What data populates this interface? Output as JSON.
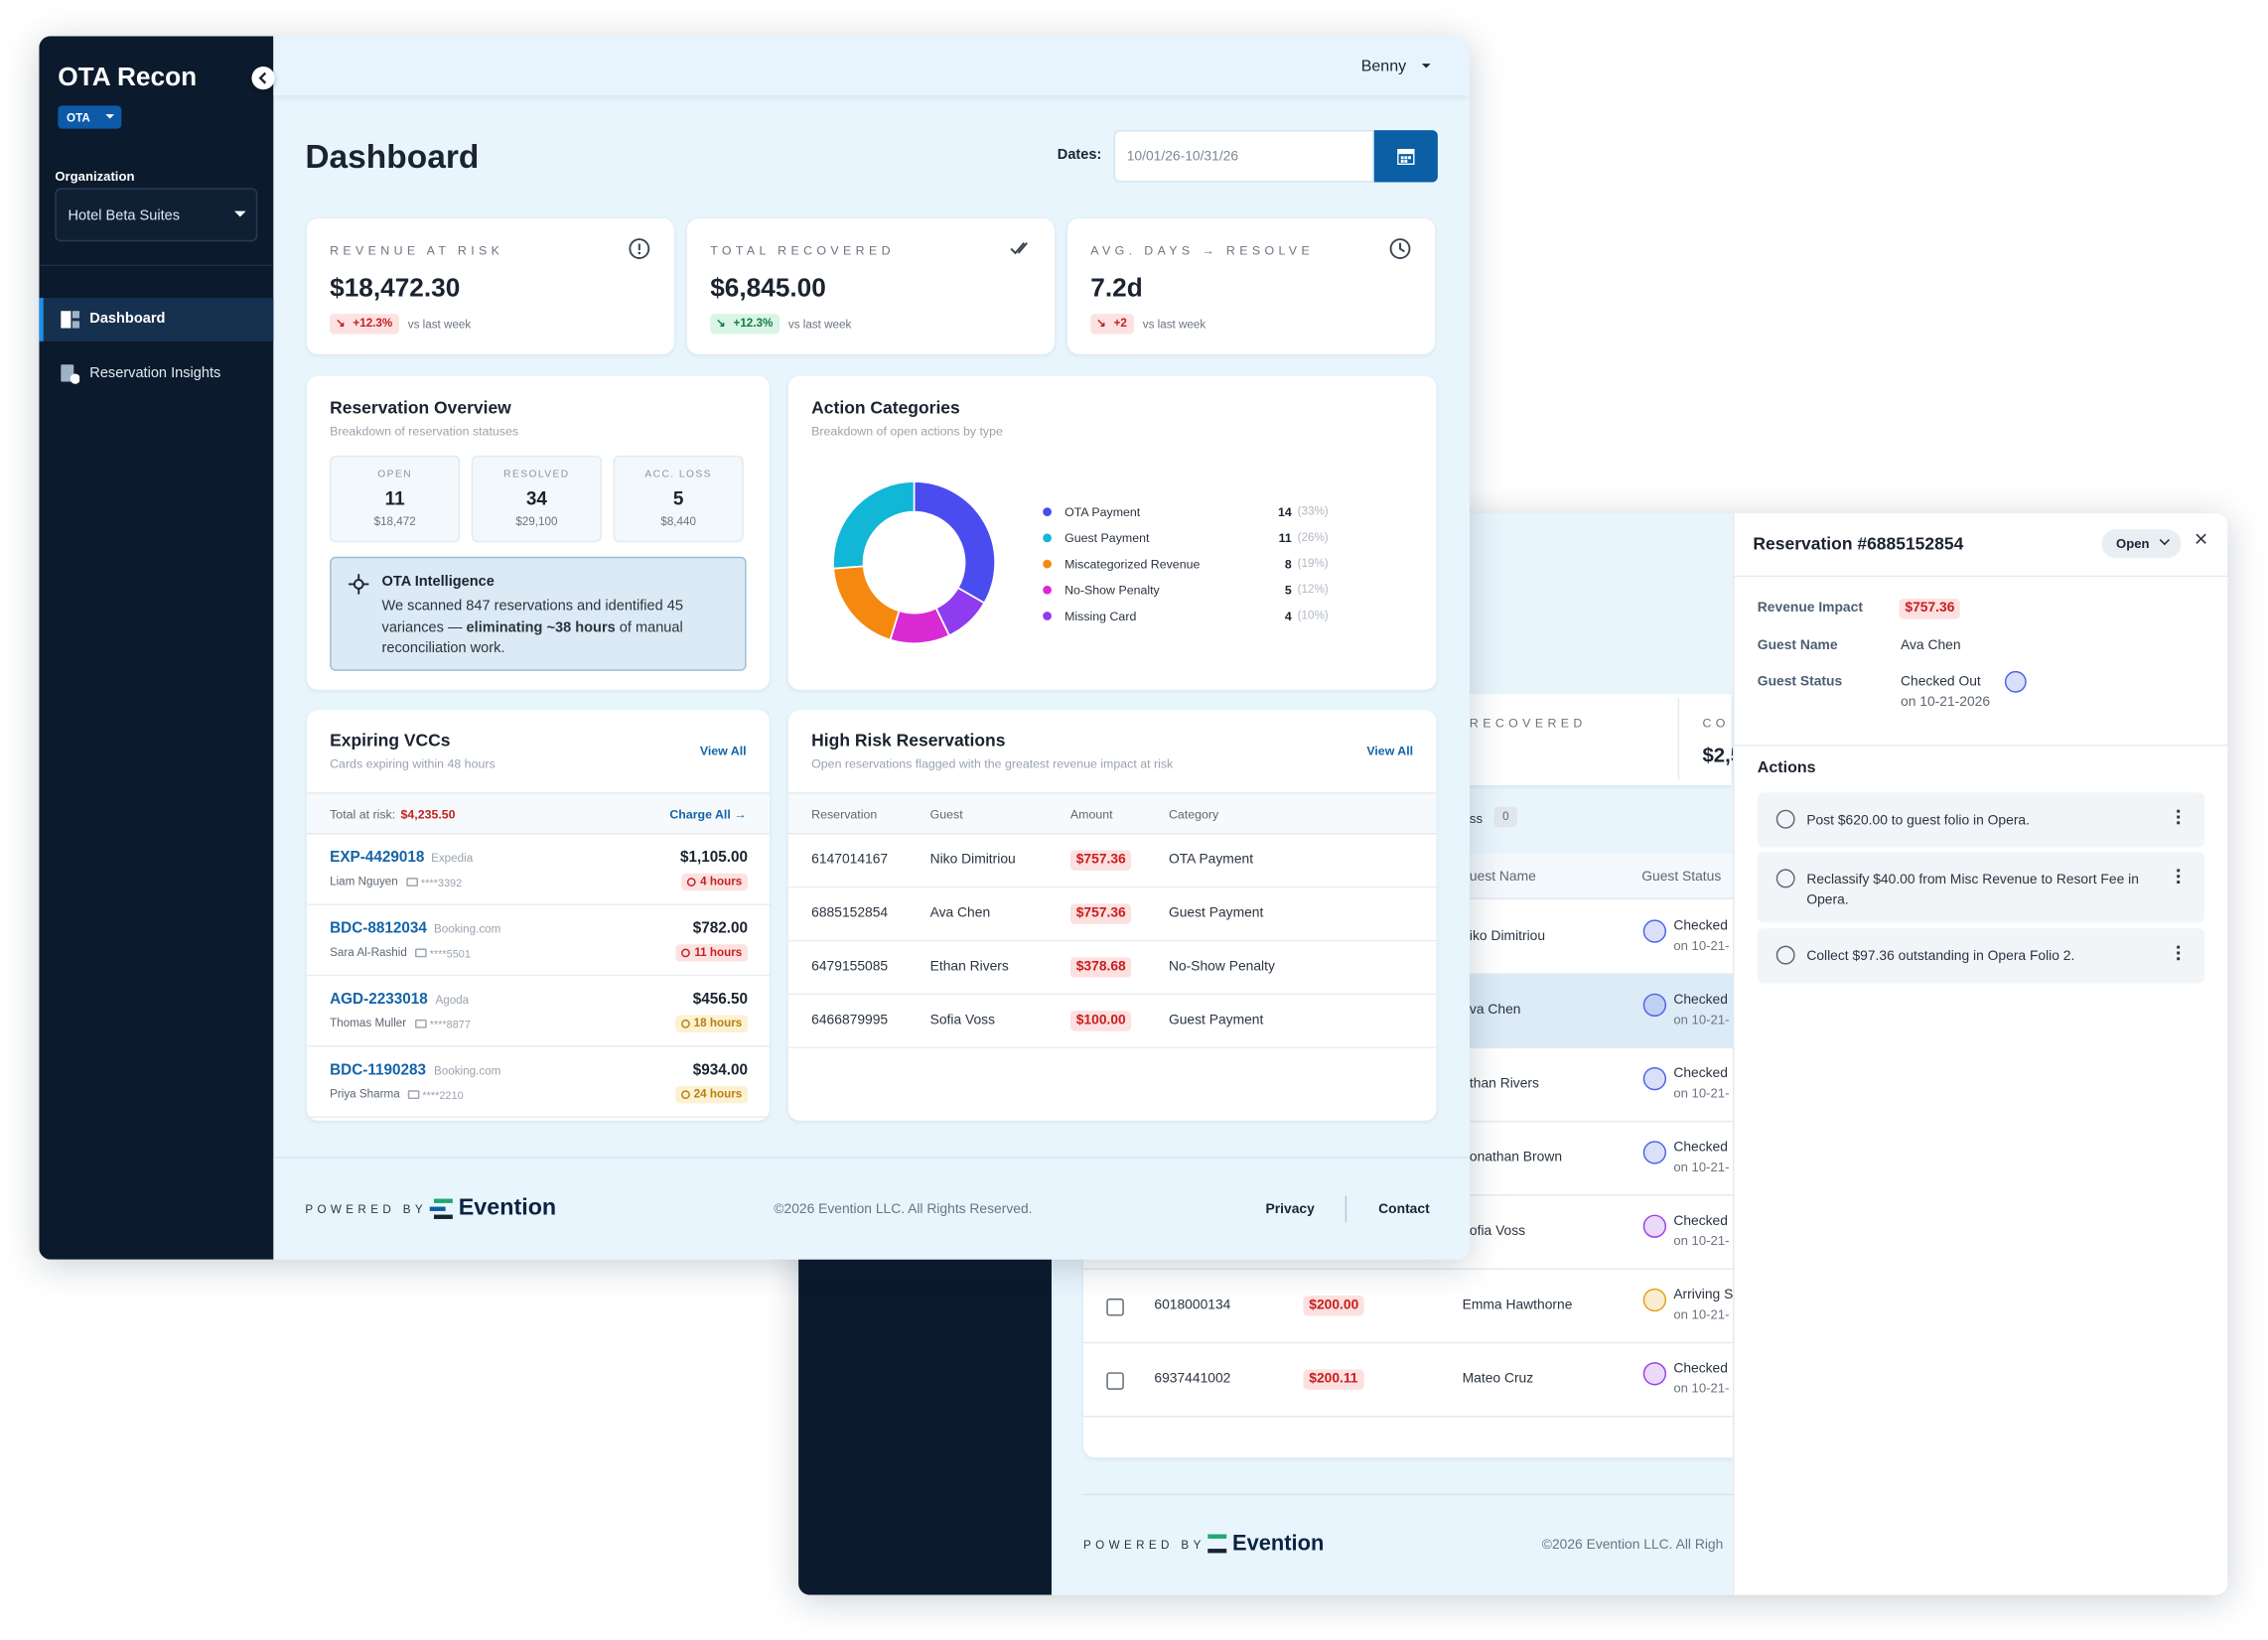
{
  "sidebar": {
    "brand": "OTA Recon",
    "badge": "OTA",
    "org_label": "Organization",
    "org": "Hotel Beta Suites",
    "nav": [
      "Dashboard",
      "Reservation Insights"
    ]
  },
  "topbar": {
    "user": "Benny"
  },
  "header": {
    "title": "Dashboard",
    "dates_label": "Dates:",
    "dates": "10/01/26-10/31/26"
  },
  "kpis": [
    {
      "label": "REVENUE AT RISK",
      "value": "$18,472.30",
      "delta": "+12.3%",
      "delta_color": "red",
      "note": "vs last week"
    },
    {
      "label": "TOTAL RECOVERED",
      "value": "$6,845.00",
      "delta": "+12.3%",
      "delta_color": "green",
      "note": "vs last week"
    },
    {
      "label": "AVG. DAYS → RESOLVE",
      "value": "7.2d",
      "delta": "+2",
      "delta_color": "red",
      "note": "vs last week"
    }
  ],
  "reservation_overview": {
    "title": "Reservation Overview",
    "subtitle": "Breakdown of reservation statuses",
    "stats": [
      {
        "label": "OPEN",
        "value": 11,
        "amount": "$18,472"
      },
      {
        "label": "RESOLVED",
        "value": 34,
        "amount": "$29,100"
      },
      {
        "label": "ACC. LOSS",
        "value": 5,
        "amount": "$8,440"
      }
    ],
    "intelligence": {
      "title": "OTA Intelligence",
      "text_before": "We scanned 847 reservations and identified 45 variances — ",
      "text_bold": "eliminating ~38 hours",
      "text_after": " of manual reconciliation work."
    }
  },
  "action_categories": {
    "title": "Action Categories",
    "subtitle": "Breakdown of open actions by type",
    "items": [
      {
        "name": "OTA Payment",
        "color": "#4b4cf0",
        "value": 14,
        "percent_label": "(33%)"
      },
      {
        "name": "Guest Payment",
        "color": "#12b6d6",
        "value": 11,
        "percent_label": "(26%)"
      },
      {
        "name": "Miscategorized Revenue",
        "color": "#f5880f",
        "value": 8,
        "percent_label": "(19%)"
      },
      {
        "name": "No-Show Penalty",
        "color": "#d92bd4",
        "value": 5,
        "percent_label": "(12%)"
      },
      {
        "name": "Missing Card",
        "color": "#8f3bf0",
        "value": 4,
        "percent_label": "(10%)"
      }
    ]
  },
  "expiring_vccs": {
    "title": "Expiring VCCs",
    "subtitle": "Cards expiring within 48 hours",
    "view_all": "View All",
    "total_label": "Total at risk:",
    "total": "$4,235.50",
    "charge_all": "Charge All →",
    "items": [
      {
        "id": "EXP-4429018",
        "channel": "Expedia",
        "guest": "Liam Nguyen",
        "card": "****3392",
        "amount": "$1,105.00",
        "expires": "4 hours",
        "color": "red"
      },
      {
        "id": "BDC-8812034",
        "channel": "Booking.com",
        "guest": "Sara Al-Rashid",
        "card": "****5501",
        "amount": "$782.00",
        "expires": "11 hours",
        "color": "red"
      },
      {
        "id": "AGD-2233018",
        "channel": "Agoda",
        "guest": "Thomas Muller",
        "card": "****8877",
        "amount": "$456.50",
        "expires": "18 hours",
        "color": "amber"
      },
      {
        "id": "BDC-1190283",
        "channel": "Booking.com",
        "guest": "Priya Sharma",
        "card": "****2210",
        "amount": "$934.00",
        "expires": "24 hours",
        "color": "amber"
      }
    ]
  },
  "high_risk": {
    "title": "High Risk Reservations",
    "subtitle": "Open reservations flagged with the greatest revenue impact at risk",
    "view_all": "View All",
    "columns": [
      "Reservation",
      "Guest",
      "Amount",
      "Category"
    ],
    "rows": [
      [
        "6147014167",
        "Niko Dimitriou",
        "$757.36",
        "OTA Payment"
      ],
      [
        "6885152854",
        "Ava Chen",
        "$757.36",
        "Guest Payment"
      ],
      [
        "6479155085",
        "Ethan Rivers",
        "$378.68",
        "No-Show Penalty"
      ],
      [
        "6466879995",
        "Sofia Voss",
        "$100.00",
        "Guest Payment"
      ]
    ]
  },
  "footer": {
    "powered_by": "POWERED BY",
    "brand": "Evention",
    "copyright": "©2026 Evention LLC. All Rights Reserved.",
    "links": [
      "Privacy",
      "Contact"
    ]
  },
  "back_window": {
    "kpi_labels": [
      "RECOVERED",
      "CO"
    ],
    "kpi_value": "$2,5",
    "filter": "ss",
    "filter_count": 0,
    "columns": [
      "uest Name",
      "Guest Status"
    ],
    "rows": [
      {
        "guest": "iko Dimitriou",
        "status": "Checked",
        "date": "on 10-21-",
        "icon_color": "#4b62e8"
      },
      {
        "guest": "va Chen",
        "status": "Checked",
        "date": "on 10-21-",
        "icon_color": "#4b62e8"
      },
      {
        "guest": "than Rivers",
        "status": "Checked",
        "date": "on 10-21-",
        "icon_color": "#4b62e8"
      },
      {
        "guest": "onathan Brown",
        "status": "Checked",
        "date": "on 10-21-",
        "icon_color": "#4b62e8"
      },
      {
        "guest": "ofia Voss",
        "status": "Checked",
        "date": "on 10-21-",
        "icon_color": "#9b3fe6"
      },
      {
        "reservation": "6018000134",
        "amount": "$200.00",
        "guest": "Emma Hawthorne",
        "status": "Arriving S",
        "date": "on 10-21-",
        "icon_color": "#e0a112"
      },
      {
        "reservation": "6937441002",
        "amount": "$200.11",
        "guest": "Mateo Cruz",
        "status": "Checked",
        "date": "on 10-21-",
        "icon_color": "#9b3fe6"
      }
    ],
    "footer": {
      "powered_by": "POWERED BY",
      "brand": "Evention",
      "copyright": "©2026 Evention LLC. All Righ"
    }
  },
  "panel": {
    "title": "Reservation #6885152854",
    "status": "Open",
    "fields": [
      {
        "label": "Revenue Impact",
        "value": "$757.36"
      },
      {
        "label": "Guest Name",
        "value": "Ava Chen"
      },
      {
        "label": "Guest Status",
        "value": "Checked Out",
        "sub": "on 10-21-2026"
      }
    ],
    "actions_title": "Actions",
    "actions": [
      "Post $620.00 to guest folio in Opera.",
      "Reclassify $40.00 from Misc Revenue to Resort Fee in Opera.",
      "Collect $97.36 outstanding in Opera Folio 2."
    ]
  }
}
